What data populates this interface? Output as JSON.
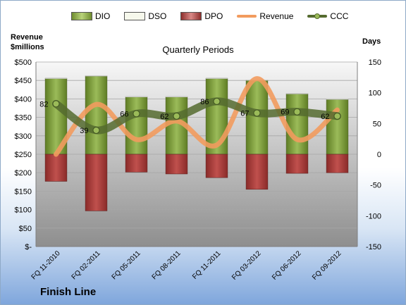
{
  "legend": {
    "dio": "DIO",
    "dso": "DSO",
    "dpo": "DPO",
    "revenue": "Revenue",
    "ccc": "CCC"
  },
  "axes": {
    "left_title_line1": "Revenue",
    "left_title_line2": "$millions",
    "right_title": "Days"
  },
  "plot_title": "Quarterly Periods",
  "footer": "Finish Line",
  "colors": {
    "dio": "#9bbb59",
    "dso": "#f2f5e6",
    "dpo": "#c0504d",
    "revenue": "#f29b5e",
    "ccc": "#556b2f"
  },
  "chart_data": {
    "type": "bar",
    "categories": [
      "FQ 11-2010",
      "FQ 02-2011",
      "FQ 05-2011",
      "FQ 08-2011",
      "FQ 11-2011",
      "FQ 03-2012",
      "FQ 06-2012",
      "FQ 09-2012"
    ],
    "left_axis": {
      "ylim": [
        0,
        500
      ],
      "ticks": [
        "$-",
        "$50",
        "$100",
        "$150",
        "$200",
        "$250",
        "$300",
        "$350",
        "$400",
        "$450",
        "$500"
      ]
    },
    "right_axis": {
      "ylim": [
        -150,
        150
      ],
      "ticks": [
        "-150",
        "-100",
        "-50",
        "0",
        "50",
        "100",
        "150"
      ]
    },
    "series": [
      {
        "name": "DIO",
        "type": "bar",
        "axis": "right",
        "values": [
          123,
          127,
          93,
          93,
          123,
          120,
          98,
          89
        ]
      },
      {
        "name": "DSO",
        "type": "bar",
        "axis": "right",
        "values": [
          1,
          1,
          1,
          1,
          1,
          1,
          1,
          1
        ]
      },
      {
        "name": "DPO",
        "type": "bar",
        "axis": "right",
        "values": [
          -44,
          -92,
          -29,
          -32,
          -38,
          -57,
          -31,
          -30
        ]
      },
      {
        "name": "Revenue",
        "type": "line",
        "axis": "left",
        "values": [
          250,
          385,
          290,
          340,
          275,
          455,
          290,
          370
        ]
      },
      {
        "name": "CCC",
        "type": "line",
        "axis": "right",
        "values": [
          82,
          39,
          66,
          62,
          86,
          67,
          69,
          62
        ],
        "data_labels": [
          "82",
          "39",
          "66",
          "62",
          "86",
          "67",
          "69",
          "62"
        ]
      }
    ],
    "grid": true,
    "legend_position": "top"
  }
}
